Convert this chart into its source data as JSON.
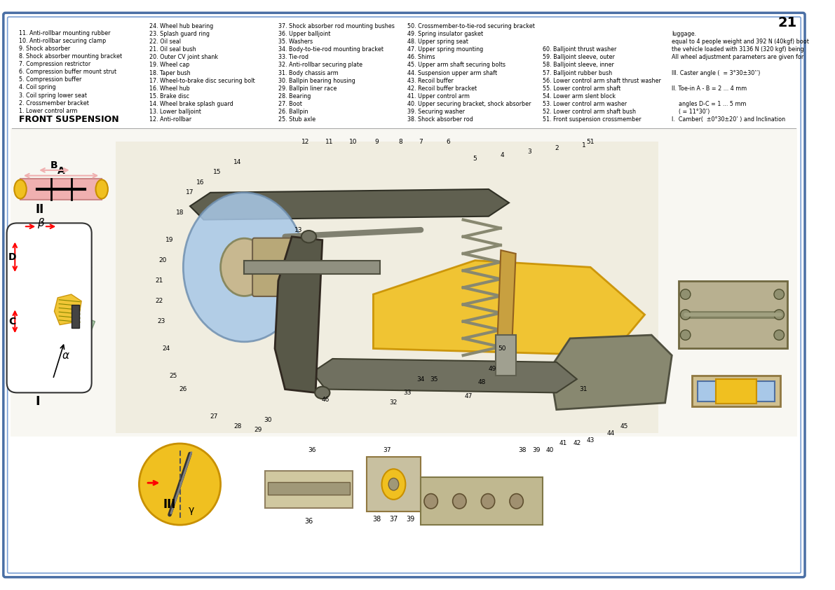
{
  "page_bg": "#ffffff",
  "border_color": "#4a6fa5",
  "border_inner_color": "#7a9fd4",
  "title": "FRONT SUSPENSION",
  "page_number": "21",
  "legend_col1": [
    "1. Lower control arm",
    "2. Crossmember bracket",
    "3. Coil spring lower seat",
    "4. Coil spring",
    "5. Compression buffer",
    "6. Compression buffer mount strut",
    "7. Compression restrictor",
    "8. Shock absorber mounting bracket",
    "9. Shock absorber",
    "10. Anti-rollbar securing clamp",
    "11. Anti-rollbar mounting rubber"
  ],
  "legend_col2": [
    "12. Anti-rollbar",
    "13. Lower balljoint",
    "14. Wheel brake splash guard",
    "15. Brake disc",
    "16. Wheel hub",
    "17. Wheel-to-brake disc securing bolt",
    "18. Taper bush",
    "19. Wheel cap",
    "20. Outer CV joint shank",
    "21. Oil seal bush",
    "22. Oil seal",
    "23. Splash guard ring",
    "24. Wheel hub bearing"
  ],
  "legend_col3": [
    "25. Stub axle",
    "26. Ballpin",
    "27. Boot",
    "28. Bearing",
    "29. Ballpin liner race",
    "30. Ballpin bearing housing",
    "31. Body chassis arm",
    "32. Anti-rollbar securing plate",
    "33. Tie-rod",
    "34. Body-to-tie-rod mounting bracket",
    "35. Washers",
    "36. Upper balljoint",
    "37. Shock absorber rod mounting bushes"
  ],
  "legend_col4": [
    "38. Shock absorber rod",
    "39. Securing washer",
    "40. Upper securing bracket, shock absorber",
    "41. Upper control arm",
    "42. Recoil buffer bracket",
    "43. Recoil buffer",
    "44. Suspension upper arm shaft",
    "45. Upper arm shaft securing bolts",
    "46. Shims",
    "47. Upper spring mounting",
    "48. Upper spring seat",
    "49. Spring insulator gasket",
    "50. Crossmember-to-tie-rod securing bracket"
  ],
  "legend_col5": [
    "51. Front suspension crossmember",
    "52. Lower control arm shaft bush",
    "53. Lower control arm washer",
    "54. Lower arm slent block",
    "55. Lower control arm shaft",
    "56. Lower control arm shaft thrust washer",
    "57. Balljoint rubber bush",
    "58. Balljoint sleeve, inner",
    "59. Balljoint sleeve, outer",
    "60. Balljoint thrust washer"
  ],
  "notes": [
    "I.  Camber(  ±0°30±20’ ) and Inclination",
    "    ( = 11°30’)",
    "    angles D-C = 1 ... 5 mm",
    "",
    "II. Toe-in A - B = 2 ... 4 mm",
    "",
    "III. Caster angle (  = 3°30±30’’)",
    "",
    "All wheel adjustment parameters are given for",
    "the vehicle loaded with 3136 N (320 kgf) being",
    "equal to 4 people weight and 392 N (40kgf) boot",
    "luggage."
  ],
  "diagram_bg": "#f5f5f0",
  "yellow_color": "#f0c020",
  "blue_light": "#a8c8e8",
  "pink_color": "#f0b0b0",
  "green_color": "#90b890",
  "roman_labels": [
    "I",
    "II",
    "III"
  ],
  "alpha_label": "α",
  "beta_label": "β",
  "C_label": "C",
  "D_label": "D",
  "A_label": "A",
  "B_label": "B"
}
